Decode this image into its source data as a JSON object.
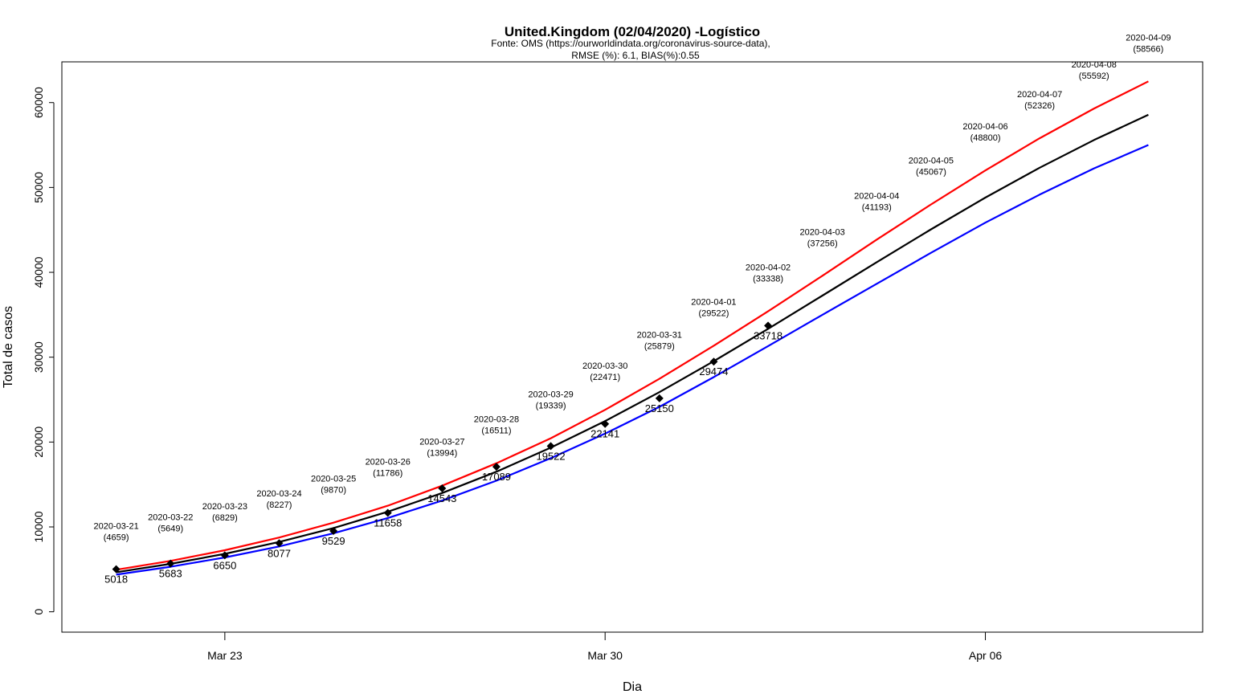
{
  "chart_data": {
    "type": "line",
    "title": "United.Kingdom (02/04/2020) -Logístico",
    "subtitle_lines": [
      "Fonte: OMS (https://ourworldindata.org/coronavirus-source-data),",
      "RMSE (%): 6.1, BIAS(%):0.55"
    ],
    "xlabel": "Dia",
    "ylabel": "Total de casos",
    "ylim": [
      -2400,
      64800
    ],
    "yticks": [
      0,
      10000,
      20000,
      30000,
      40000,
      50000,
      60000
    ],
    "ytick_labels": [
      "0",
      "10000",
      "20000",
      "30000",
      "40000",
      "50000",
      "60000"
    ],
    "xlim": [
      "2020-03-20",
      "2020-04-10"
    ],
    "xticks": [
      "2020-03-23",
      "2020-03-30",
      "2020-04-06"
    ],
    "xtick_labels": [
      "Mar 23",
      "Mar 30",
      "Apr 06"
    ],
    "observed": {
      "dates": [
        "2020-03-21",
        "2020-03-22",
        "2020-03-23",
        "2020-03-24",
        "2020-03-25",
        "2020-03-26",
        "2020-03-27",
        "2020-03-28",
        "2020-03-29",
        "2020-03-30",
        "2020-03-31",
        "2020-04-01",
        "2020-04-02"
      ],
      "values": [
        5018,
        5683,
        6650,
        8077,
        9529,
        11658,
        14543,
        17089,
        19522,
        22141,
        25150,
        29474,
        33718
      ]
    },
    "predicted_labels": {
      "dates": [
        "2020-03-21",
        "2020-03-22",
        "2020-03-23",
        "2020-03-24",
        "2020-03-25",
        "2020-03-26",
        "2020-03-27",
        "2020-03-28",
        "2020-03-29",
        "2020-03-30",
        "2020-03-31",
        "2020-04-01",
        "2020-04-02",
        "2020-04-03",
        "2020-04-04",
        "2020-04-05",
        "2020-04-06",
        "2020-04-07",
        "2020-04-08",
        "2020-04-09"
      ],
      "date_labels": [
        "2020-03-21",
        "2020-03-22",
        "2020-03-23",
        "2020-03-24",
        "2020-03-25",
        "2020-03-26",
        "2020-03-27",
        "2020-03-28",
        "2020-03-29",
        "2020-03-30",
        "2020-03-31",
        "2020-04-01",
        "2020-04-02",
        "2020-04-03",
        "2020-04-04",
        "2020-04-05",
        "2020-04-06",
        "2020-04-07",
        "2020-04-08",
        "2020-04-09"
      ],
      "value_labels": [
        "(4659)",
        "(5649)",
        "(6829)",
        "(8227)",
        "(9870)",
        "(11786)",
        "(13994)",
        "(16511)",
        "(19339)",
        "(22471)",
        "(25879)",
        "(29522)",
        "(33338)",
        "(37256)",
        "(41193)",
        "(45067)",
        "(48800)",
        "(52326)",
        "(55592)",
        "(58566)"
      ]
    },
    "series": [
      {
        "color": "#ff0000",
        "x": [
          "2020-03-21",
          "2020-03-22",
          "2020-03-23",
          "2020-03-24",
          "2020-03-25",
          "2020-03-26",
          "2020-03-27",
          "2020-03-28",
          "2020-03-29",
          "2020-03-30",
          "2020-03-31",
          "2020-04-01",
          "2020-04-02",
          "2020-04-03",
          "2020-04-04",
          "2020-04-05",
          "2020-04-06",
          "2020-04-07",
          "2020-04-08",
          "2020-04-09"
        ],
        "values": [
          4950,
          6000,
          7250,
          8750,
          10500,
          12500,
          14850,
          17500,
          20450,
          23800,
          27450,
          31350,
          35400,
          39600,
          43850,
          48000,
          52000,
          55800,
          59300,
          62500
        ]
      },
      {
        "color": "#000000",
        "x": [
          "2020-03-21",
          "2020-03-22",
          "2020-03-23",
          "2020-03-24",
          "2020-03-25",
          "2020-03-26",
          "2020-03-27",
          "2020-03-28",
          "2020-03-29",
          "2020-03-30",
          "2020-03-31",
          "2020-04-01",
          "2020-04-02",
          "2020-04-03",
          "2020-04-04",
          "2020-04-05",
          "2020-04-06",
          "2020-04-07",
          "2020-04-08",
          "2020-04-09"
        ],
        "values": [
          4659,
          5649,
          6829,
          8227,
          9870,
          11786,
          13994,
          16511,
          19339,
          22471,
          25879,
          29522,
          33338,
          37256,
          41193,
          45067,
          48800,
          52326,
          55592,
          58566
        ]
      },
      {
        "color": "#0000ff",
        "x": [
          "2020-03-21",
          "2020-03-22",
          "2020-03-23",
          "2020-03-24",
          "2020-03-25",
          "2020-03-26",
          "2020-03-27",
          "2020-03-28",
          "2020-03-29",
          "2020-03-30",
          "2020-03-31",
          "2020-04-01",
          "2020-04-02",
          "2020-04-03",
          "2020-04-04",
          "2020-04-05",
          "2020-04-06",
          "2020-04-07",
          "2020-04-08",
          "2020-04-09"
        ],
        "values": [
          4380,
          5300,
          6400,
          7700,
          9250,
          11050,
          13100,
          15450,
          18100,
          21000,
          24150,
          27650,
          31300,
          35000,
          38650,
          42300,
          45850,
          49150,
          52250,
          55000
        ]
      }
    ],
    "grid": false,
    "legend": "none"
  }
}
